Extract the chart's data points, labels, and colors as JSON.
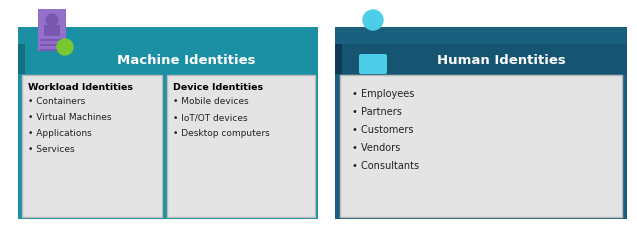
{
  "machine_header_color": "#1b8fa3",
  "human_header_color": "#1a6080",
  "machine_bg_color": "#1b8fa3",
  "human_bg_color": "#1a5f7e",
  "card_bg_color": "#e4e4e4",
  "card_border_color": "#bbbbbb",
  "header_text_color": "#ffffff",
  "card_title_color": "#000000",
  "card_text_color": "#222222",
  "bg_color": "#ffffff",
  "machine_title": "Machine Identities",
  "human_title": "Human Identities",
  "workload_title": "Workload Identities",
  "workload_items": [
    "Containers",
    "Virtual Machines",
    "Applications",
    "Services"
  ],
  "device_title": "Device Identities",
  "device_items": [
    "Mobile devices",
    "IoT/OT devices",
    "Desktop computers"
  ],
  "human_items": [
    "Employees",
    "Partners",
    "Customers",
    "Vendors",
    "Consultants"
  ],
  "icon_purple_color": "#9370cc",
  "icon_purple_dark": "#7a58b0",
  "icon_green_color": "#78c832",
  "icon_human_color": "#4dcde8"
}
